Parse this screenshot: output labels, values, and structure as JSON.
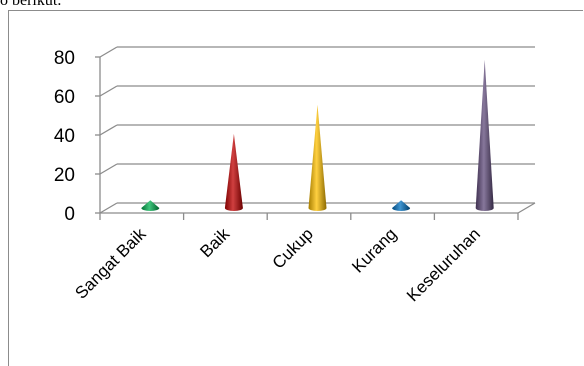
{
  "page_text": "o berikut.",
  "chart_data": {
    "type": "bar",
    "shape": "cone",
    "style": "3d",
    "categories": [
      "Sangat Baik",
      "Baik",
      "Cukup",
      "Kurang",
      "Keseluruhan"
    ],
    "values": [
      4,
      38,
      53,
      4,
      76
    ],
    "colors": [
      "#00b050",
      "#c00000",
      "#ffc000",
      "#0070c0",
      "#5f497a"
    ],
    "ylim": [
      0,
      80
    ],
    "yticks": [
      0,
      20,
      40,
      60,
      80
    ],
    "grid": true,
    "legend": "none"
  }
}
